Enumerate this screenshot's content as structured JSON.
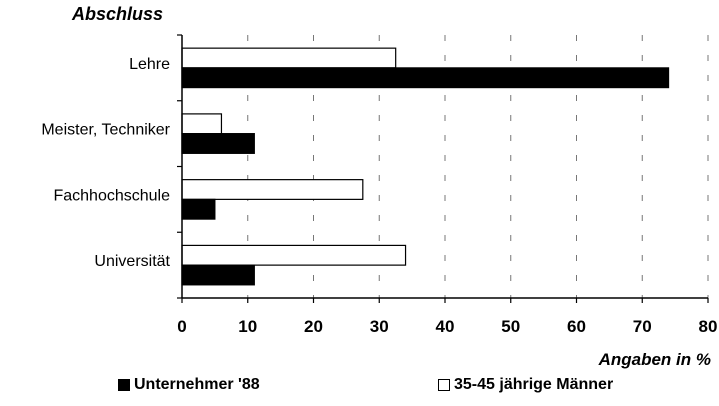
{
  "chart_data": {
    "type": "bar",
    "orientation": "horizontal",
    "title": "Abschluss",
    "xlabel": "Angaben in %",
    "categories": [
      "Lehre",
      "Meister, Techniker",
      "Fachhochschule",
      "Universität"
    ],
    "series": [
      {
        "name": "Unternehmer '88",
        "values": [
          74,
          11,
          5,
          11
        ],
        "color": "#000000"
      },
      {
        "name": "35-45 jährige Männer",
        "values": [
          32.5,
          6,
          27.5,
          34
        ],
        "color": "#ffffff"
      }
    ],
    "xlim": [
      0,
      80
    ],
    "xticks": [
      0,
      10,
      20,
      30,
      40,
      50,
      60,
      70,
      80
    ],
    "grid": true,
    "legend": "bottom"
  }
}
